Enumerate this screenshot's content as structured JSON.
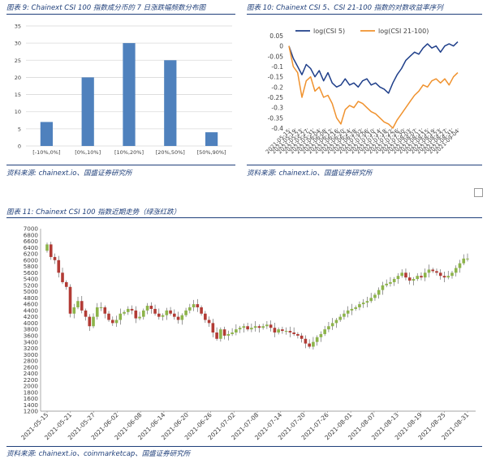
{
  "panels": {
    "fig9": {
      "caption": "图表 9:  Chainext CSI 100 指数成分币的 7 日涨跌幅频数分布图",
      "source": "资料来源:   chainext.io、国盛证券研究所"
    },
    "fig10": {
      "caption": "图表 10:  Chainext CSI 5、CSI 21-100 指数的对数收益率序列",
      "source": "资料来源:   chainext.io、国盛证券研究所"
    },
    "fig11": {
      "caption": "图表 11:  Chainext CSI 100 指数近期走势（绿涨红跌）",
      "source": "资料来源:   chainext.io、coinmarketcap、国盛证券研究所"
    }
  },
  "colors": {
    "bar": "#4f81bd",
    "csi5": "#1f3f8a",
    "csi21_100": "#f0922e",
    "up": "#8db44a",
    "down": "#b23b35",
    "caption": "#1f3f7a"
  },
  "chart_data": [
    {
      "id": "fig9",
      "type": "bar",
      "categories": [
        "[-10%,0%]",
        "[0%,10%]",
        "[10%,20%]",
        "[20%,50%]",
        "[50%,90%]"
      ],
      "values": [
        7,
        20,
        30,
        25,
        4
      ],
      "ylim": [
        0,
        35
      ],
      "yticks": [
        0,
        5,
        10,
        15,
        20,
        25,
        30,
        35
      ],
      "grid": true,
      "legend": "none"
    },
    {
      "id": "fig10",
      "type": "line",
      "ylim": [
        -0.4,
        0.05
      ],
      "yticks": [
        "0.05",
        "0",
        "-0.05",
        "-0.1",
        "-0.15",
        "-0.2",
        "-0.25",
        "-0.3",
        "-0.35",
        "-0.4"
      ],
      "xticks": [
        "2021-05-15",
        "2021-05-19",
        "2021-05-23",
        "2021-05-27",
        "2021-05-31",
        "2021-06-04",
        "2021-06-08",
        "2021-06-12",
        "2021-06-16",
        "2021-06-20",
        "2021-06-24",
        "2021-06-28",
        "2021-07-02",
        "2021-07-06",
        "2021-07-10",
        "2021-07-14",
        "2021-07-18",
        "2021-07-22",
        "2021-07-26",
        "2021-07-30",
        "2021-08-03",
        "2021-08-07",
        "2021-08-11",
        "2021-08-15",
        "2021-08-19",
        "2021-08-23",
        "2021-08-27",
        "2021-08-31",
        "2021-09-04"
      ],
      "legend": "top",
      "series": [
        {
          "name": "log(CSI 5)",
          "values": [
            0,
            -0.06,
            -0.1,
            -0.14,
            -0.09,
            -0.11,
            -0.15,
            -0.12,
            -0.17,
            -0.13,
            -0.18,
            -0.2,
            -0.19,
            -0.16,
            -0.19,
            -0.18,
            -0.2,
            -0.17,
            -0.16,
            -0.19,
            -0.18,
            -0.2,
            -0.21,
            -0.23,
            -0.18,
            -0.14,
            -0.11,
            -0.07,
            -0.05,
            -0.03,
            -0.04,
            -0.01,
            0.01,
            -0.01,
            0,
            -0.03,
            0,
            0.01,
            0,
            0.02
          ]
        },
        {
          "name": "log(CSI 21-100)",
          "values": [
            0,
            -0.1,
            -0.13,
            -0.25,
            -0.17,
            -0.15,
            -0.22,
            -0.2,
            -0.25,
            -0.24,
            -0.28,
            -0.35,
            -0.38,
            -0.31,
            -0.29,
            -0.3,
            -0.27,
            -0.28,
            -0.3,
            -0.32,
            -0.33,
            -0.35,
            -0.37,
            -0.38,
            -0.4,
            -0.36,
            -0.33,
            -0.3,
            -0.27,
            -0.24,
            -0.22,
            -0.19,
            -0.2,
            -0.17,
            -0.16,
            -0.18,
            -0.16,
            -0.19,
            -0.15,
            -0.13
          ]
        }
      ]
    },
    {
      "id": "fig11",
      "type": "candlestick",
      "ylim": [
        1200,
        7000
      ],
      "yticks": [
        1200,
        1400,
        1600,
        1800,
        2000,
        2200,
        2400,
        2600,
        2800,
        3000,
        3200,
        3400,
        3600,
        3800,
        4000,
        4200,
        4400,
        4600,
        4800,
        5000,
        5200,
        5400,
        5600,
        5800,
        6000,
        6200,
        6400,
        6600,
        6800,
        7000
      ],
      "xticks": [
        "2021-05-15",
        "2021-05-21",
        "2021-05-27",
        "2021-06-02",
        "2021-06-08",
        "2021-06-14",
        "2021-06-20",
        "2021-06-26",
        "2021-07-02",
        "2021-07-08",
        "2021-07-14",
        "2021-07-20",
        "2021-07-26",
        "2021-08-01",
        "2021-08-07",
        "2021-08-13",
        "2021-08-19",
        "2021-08-25",
        "2021-08-31"
      ],
      "close": [
        6500,
        6100,
        6000,
        5600,
        5300,
        5150,
        4300,
        4500,
        4700,
        4400,
        4200,
        3900,
        4200,
        4500,
        4500,
        4300,
        4100,
        4000,
        4100,
        4300,
        4350,
        4450,
        4400,
        4150,
        4200,
        4400,
        4550,
        4450,
        4300,
        4200,
        4250,
        4400,
        4300,
        4200,
        4100,
        4250,
        4400,
        4500,
        4600,
        4500,
        4300,
        4100,
        4000,
        3700,
        3500,
        3800,
        3600,
        3650,
        3700,
        3800,
        3850,
        3900,
        3800,
        3850,
        3900,
        3850,
        3900,
        3950,
        3850,
        3700,
        3800,
        3750,
        3750,
        3700,
        3650,
        3600,
        3500,
        3350,
        3250,
        3400,
        3550,
        3650,
        3800,
        3900,
        4000,
        4100,
        4200,
        4300,
        4400,
        4450,
        4500,
        4600,
        4650,
        4700,
        4800,
        4900,
        5050,
        5200,
        5250,
        5300,
        5400,
        5500,
        5600,
        5450,
        5350,
        5400,
        5500,
        5450,
        5600,
        5700,
        5650,
        5600,
        5500,
        5450,
        5500,
        5600,
        5750,
        5900,
        6050,
        6050
      ]
    }
  ]
}
